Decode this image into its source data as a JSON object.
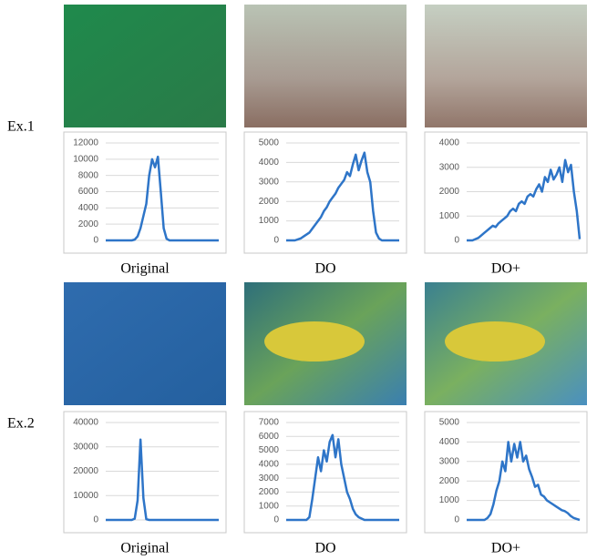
{
  "row_labels": [
    "Ex.1",
    "Ex.2"
  ],
  "chart_data": [
    {
      "type": "line",
      "xlabel": "Original",
      "color": "#2e75c8",
      "grid": true,
      "ylim": [
        0,
        12000
      ],
      "yticks": [
        0,
        2000,
        4000,
        6000,
        8000,
        10000,
        12000
      ],
      "values": [
        0,
        0,
        0,
        0,
        0,
        0,
        0,
        0,
        0,
        0,
        100,
        500,
        1500,
        3000,
        4500,
        8000,
        10000,
        9000,
        10300,
        6000,
        1500,
        200,
        0,
        0,
        0,
        0,
        0,
        0,
        0,
        0,
        0,
        0,
        0,
        0,
        0,
        0,
        0,
        0,
        0,
        0
      ]
    },
    {
      "type": "line",
      "xlabel": "DO",
      "color": "#2e75c8",
      "grid": true,
      "ylim": [
        0,
        5000
      ],
      "yticks": [
        0,
        1000,
        2000,
        3000,
        4000,
        5000
      ],
      "values": [
        0,
        0,
        0,
        0,
        50,
        100,
        200,
        300,
        400,
        600,
        800,
        1000,
        1200,
        1500,
        1700,
        2000,
        2200,
        2400,
        2700,
        2900,
        3100,
        3500,
        3300,
        3900,
        4400,
        3600,
        4100,
        4500,
        3500,
        3000,
        1500,
        400,
        100,
        0,
        0,
        0,
        0,
        0,
        0,
        0
      ]
    },
    {
      "type": "line",
      "xlabel": "DO+",
      "color": "#2e75c8",
      "grid": true,
      "ylim": [
        0,
        4000
      ],
      "yticks": [
        0,
        1000,
        2000,
        3000,
        4000
      ],
      "values": [
        0,
        0,
        0,
        50,
        100,
        200,
        300,
        400,
        500,
        600,
        550,
        700,
        800,
        900,
        1000,
        1200,
        1300,
        1200,
        1500,
        1600,
        1500,
        1800,
        1900,
        1800,
        2100,
        2300,
        2000,
        2600,
        2400,
        2900,
        2500,
        2700,
        3000,
        2400,
        3300,
        2800,
        3100,
        2000,
        1200,
        50
      ]
    },
    {
      "type": "line",
      "xlabel": "Original",
      "color": "#2e75c8",
      "grid": true,
      "ylim": [
        0,
        40000
      ],
      "yticks": [
        0,
        10000,
        20000,
        30000,
        40000
      ],
      "values": [
        0,
        0,
        0,
        0,
        0,
        0,
        0,
        0,
        0,
        0,
        500,
        8000,
        33000,
        9000,
        300,
        0,
        0,
        0,
        0,
        0,
        0,
        0,
        0,
        0,
        0,
        0,
        0,
        0,
        0,
        0,
        0,
        0,
        0,
        0,
        0,
        0,
        0,
        0,
        0,
        0
      ]
    },
    {
      "type": "line",
      "xlabel": "DO",
      "color": "#2e75c8",
      "grid": true,
      "ylim": [
        0,
        7000
      ],
      "yticks": [
        0,
        1000,
        2000,
        3000,
        4000,
        5000,
        6000,
        7000
      ],
      "values": [
        0,
        0,
        0,
        0,
        0,
        0,
        0,
        0,
        200,
        1500,
        3000,
        4500,
        3500,
        5000,
        4200,
        5600,
        6100,
        4500,
        5800,
        4000,
        3000,
        2000,
        1500,
        800,
        400,
        200,
        100,
        0,
        0,
        0,
        0,
        0,
        0,
        0,
        0,
        0,
        0,
        0,
        0,
        0
      ]
    },
    {
      "type": "line",
      "xlabel": "DO+",
      "color": "#2e75c8",
      "grid": true,
      "ylim": [
        0,
        5000
      ],
      "yticks": [
        0,
        1000,
        2000,
        3000,
        4000,
        5000
      ],
      "values": [
        0,
        0,
        0,
        0,
        0,
        0,
        0,
        100,
        300,
        800,
        1500,
        2000,
        3000,
        2500,
        4000,
        3000,
        3900,
        3200,
        4000,
        3000,
        3300,
        2600,
        2200,
        1700,
        1800,
        1300,
        1200,
        1000,
        900,
        800,
        700,
        600,
        500,
        450,
        350,
        200,
        100,
        50,
        0
      ]
    }
  ]
}
